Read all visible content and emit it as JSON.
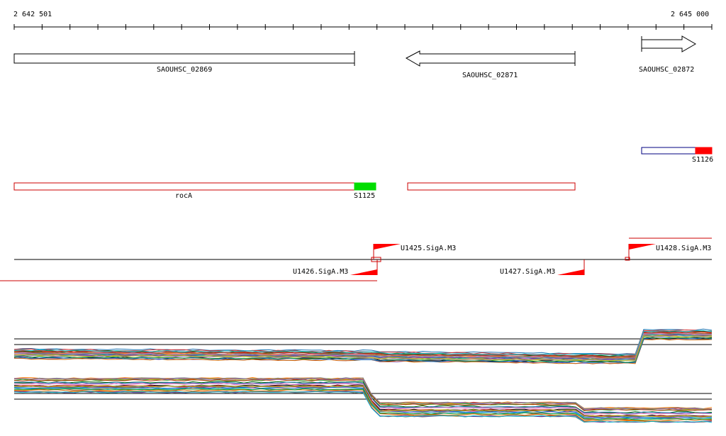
{
  "ruler": {
    "start_label": "2 642 501",
    "end_label": "2 645 000",
    "start_pos": 2642501,
    "end_pos": 2645000
  },
  "genes": [
    {
      "label": "SAOUHSC_02869",
      "strand": "+"
    },
    {
      "label": "SAOUHSC_02871",
      "strand": "-"
    },
    {
      "label": "SAOUHSC_02872",
      "strand": "+"
    }
  ],
  "segments": [
    {
      "label": "S1126",
      "color": "#ff0000"
    },
    {
      "label": "rocA",
      "color": "#ff0000"
    },
    {
      "label": "S1125",
      "color": "#00dd00"
    }
  ],
  "promoters": [
    {
      "label": "U1425.SigA.M3",
      "strand": "+"
    },
    {
      "label": "U1426.SigA.M3",
      "strand": "-"
    },
    {
      "label": "U1427.SigA.M3",
      "strand": "-"
    },
    {
      "label": "U1428.SigA.M3",
      "strand": "+"
    }
  ],
  "colors": {
    "gene_outline": "#000000",
    "segment_outline": "#cc0000",
    "promoter_flag": "#ff0000",
    "s1126_fill": "#ff0000",
    "s1126_outline": "#000080",
    "s1125_fill": "#00dd00"
  },
  "expression_palette": [
    "#1f77b4",
    "#d62728",
    "#2ca02c",
    "#ff7f0e",
    "#9467bd",
    "#8c564b",
    "#e377c2",
    "#7f7f7f",
    "#bcbd22",
    "#17becf",
    "#000000",
    "#aa3300",
    "#006600",
    "#663399",
    "#cc6600",
    "#0066cc"
  ]
}
